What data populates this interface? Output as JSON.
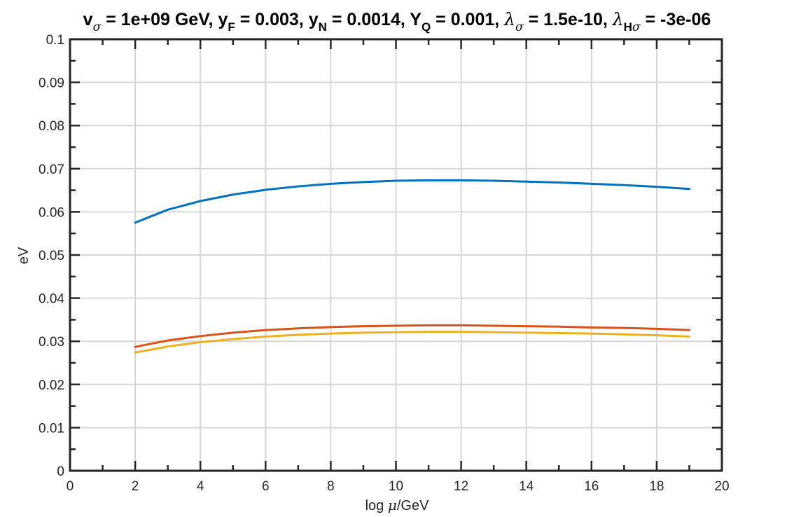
{
  "chart_data": {
    "type": "line",
    "title": "v_σ = 1e+09 GeV, y_F = 0.003, y_N = 0.0014, Y_Q = 0.001, λ_σ = 1.5e-10, λ_Hσ = -3e-06",
    "title_parts": {
      "p1": "v",
      "s1": "σ",
      "p2": " = 1e+09 GeV, y",
      "s2": "F",
      "p3": " = 0.003, y",
      "s3": "N",
      "p4": " = 0.0014, Y",
      "s4": "Q",
      "p5": " = 0.001, ",
      "g1": "λ",
      "s5": "σ",
      "p6": " = 1.5e-10, ",
      "g2": "λ",
      "s6a": "H",
      "s6b": "σ",
      "p7": " = -3e-06"
    },
    "xlabel_parts": {
      "pre": "log ",
      "mu": "μ",
      "post": "/GeV"
    },
    "xlabel": "log μ/GeV",
    "ylabel": "eV",
    "xlim": [
      0,
      20
    ],
    "ylim": [
      0,
      0.1
    ],
    "xticks": [
      "0",
      "2",
      "4",
      "6",
      "8",
      "10",
      "12",
      "14",
      "16",
      "18",
      "20"
    ],
    "yticks": [
      "0",
      "0.01",
      "0.02",
      "0.03",
      "0.04",
      "0.05",
      "0.06",
      "0.07",
      "0.08",
      "0.09",
      "0.1"
    ],
    "grid": true,
    "x": [
      2,
      3,
      4,
      5,
      6,
      7,
      8,
      9,
      10,
      11,
      12,
      13,
      14,
      15,
      16,
      17,
      18,
      19
    ],
    "series": [
      {
        "color": "#0072BD",
        "values": [
          0.0575,
          0.0605,
          0.0625,
          0.064,
          0.0651,
          0.0659,
          0.0665,
          0.0669,
          0.0672,
          0.0673,
          0.0673,
          0.0672,
          0.067,
          0.0668,
          0.0665,
          0.0662,
          0.0658,
          0.0653
        ]
      },
      {
        "color": "#D95319",
        "values": [
          0.0287,
          0.0302,
          0.0312,
          0.032,
          0.0326,
          0.033,
          0.0333,
          0.0335,
          0.0336,
          0.0337,
          0.0337,
          0.0336,
          0.0335,
          0.0334,
          0.0332,
          0.0331,
          0.0329,
          0.0326
        ]
      },
      {
        "color": "#EDB120",
        "values": [
          0.0274,
          0.0288,
          0.0298,
          0.0305,
          0.0311,
          0.0315,
          0.0318,
          0.032,
          0.0321,
          0.0322,
          0.0322,
          0.0321,
          0.032,
          0.0319,
          0.0318,
          0.0316,
          0.0314,
          0.0311
        ]
      }
    ]
  }
}
